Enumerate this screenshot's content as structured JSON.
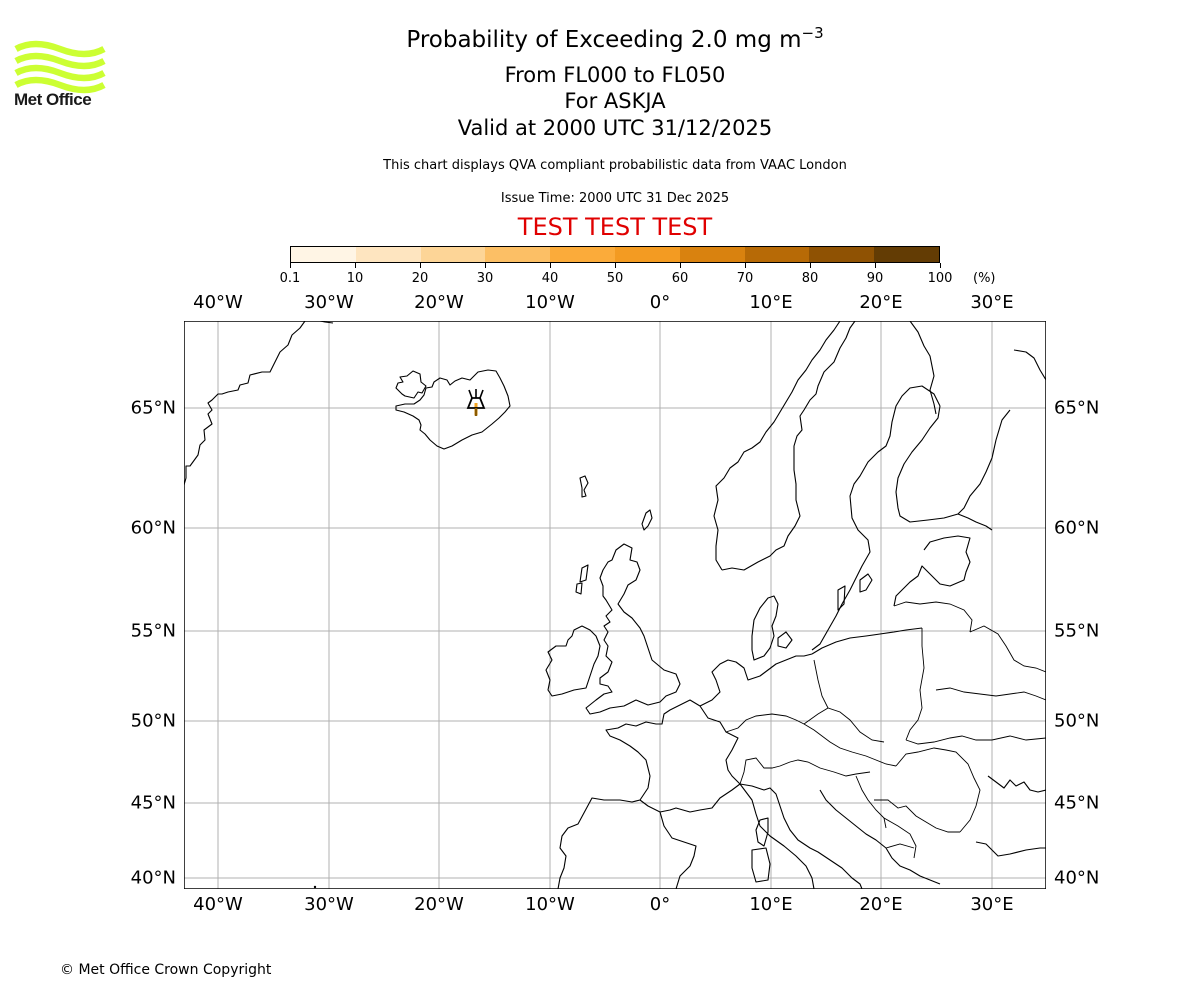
{
  "header": {
    "logo_text": "Met Office",
    "title_main": "Probability of Exceeding 2.0 mg m",
    "title_superscript": "−3",
    "flight_levels": "From FL000 to FL050",
    "volcano": "For ASKJA",
    "valid_time": "Valid at 2000 UTC 31/12/2025",
    "disclaimer": "This chart displays QVA compliant probabilistic data from VAAC London",
    "issue_time": "Issue Time: 2000 UTC 31 Dec 2025",
    "test_banner": "TEST TEST TEST",
    "test_banner_color": "#e00000"
  },
  "colorbar": {
    "unit": "(%)",
    "ticks": [
      "0.1",
      "10",
      "20",
      "30",
      "40",
      "50",
      "60",
      "70",
      "80",
      "90",
      "100"
    ],
    "colors": [
      "#fff5e5",
      "#fee5c0",
      "#fdd597",
      "#fcbf65",
      "#fbab3a",
      "#f39b22",
      "#d9820f",
      "#b76a06",
      "#8f5203",
      "#633c04"
    ]
  },
  "map": {
    "longitude_labels": [
      "40°W",
      "30°W",
      "20°W",
      "10°W",
      "0°",
      "10°E",
      "20°E",
      "30°E"
    ],
    "latitude_labels": [
      "65°N",
      "60°N",
      "55°N",
      "50°N",
      "45°N",
      "40°N"
    ],
    "volcano_marker": "volcano-icon",
    "volcano_name": "ASKJA",
    "volcano_marker_color": "#f5a623"
  },
  "footer": {
    "copyright": "© Met Office Crown Copyright"
  },
  "chart_data": {
    "type": "heatmap",
    "title": "Probability of Exceeding 2.0 mg m−3",
    "subtitle": [
      "From FL000 to FL050",
      "For ASKJA",
      "Valid at 2000 UTC 31/12/2025"
    ],
    "colorbar_levels": [
      0.1,
      10,
      20,
      30,
      40,
      50,
      60,
      70,
      80,
      90,
      100
    ],
    "colorbar_unit": "%",
    "lon_range": [
      -43,
      35
    ],
    "lat_range": [
      39.5,
      69
    ],
    "grid": true,
    "source_volcano": {
      "name": "ASKJA",
      "lon": -16.75,
      "lat": 65.03
    },
    "values": []
  }
}
